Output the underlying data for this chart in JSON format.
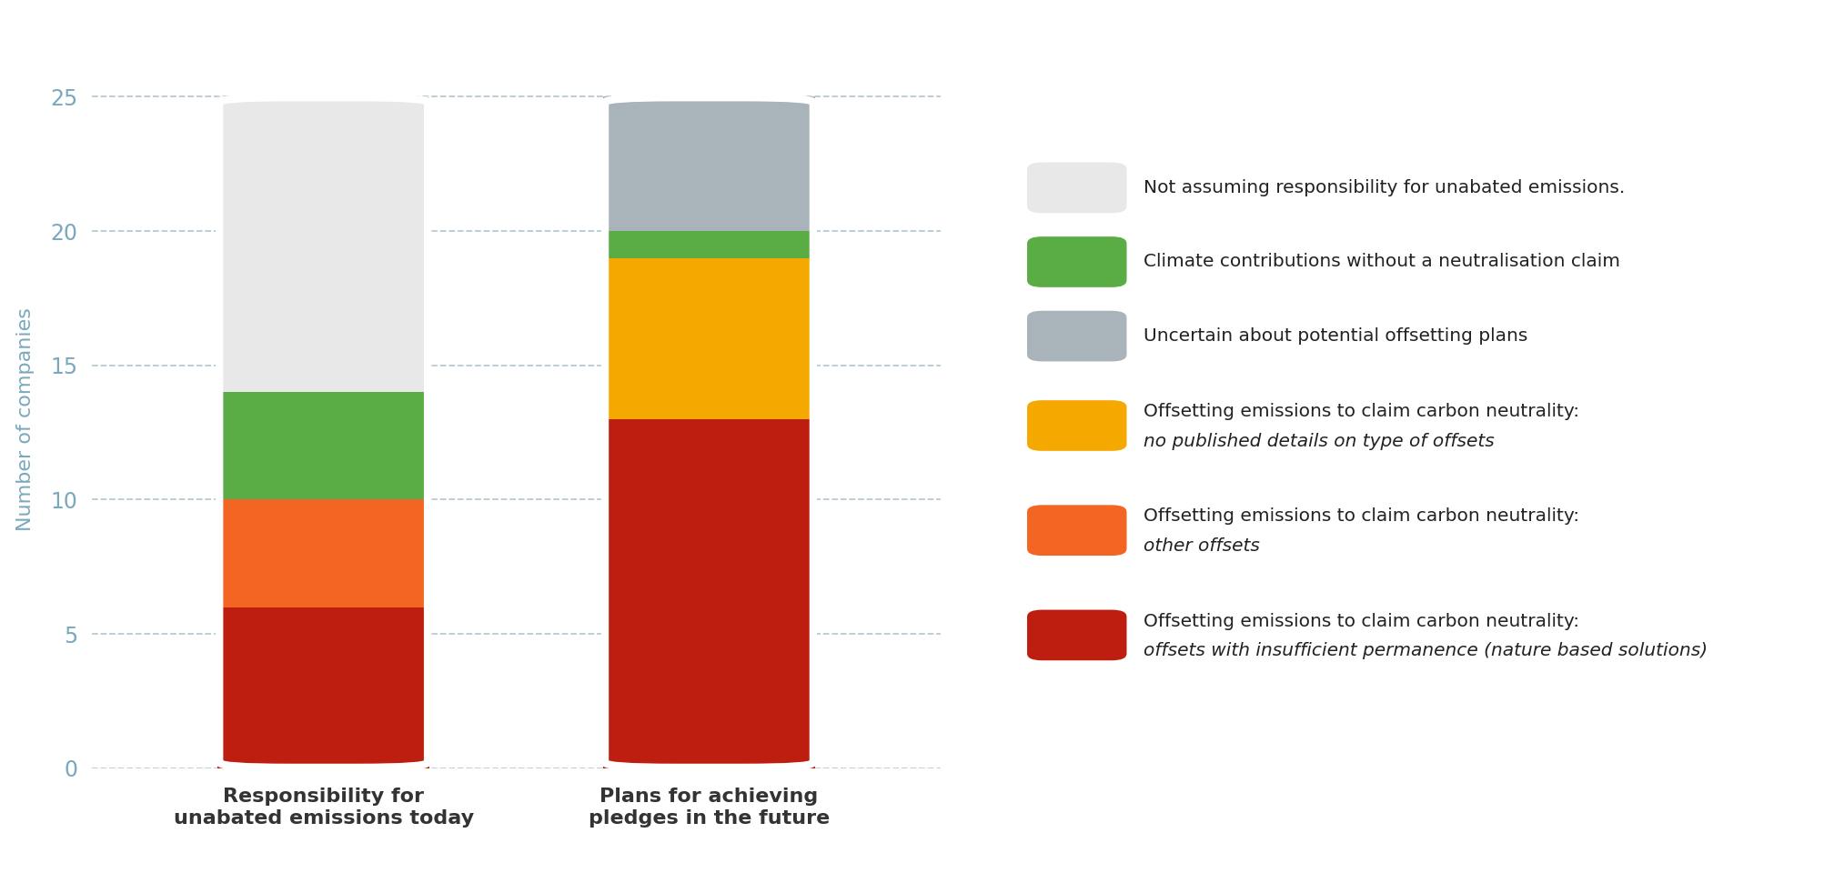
{
  "categories": [
    "Responsibility for\nunabated emissions today",
    "Plans for achieving\npledges in the future"
  ],
  "segments": [
    {
      "label": "Offsetting emissions to claim carbon neutrality:\noffsets with insufficient permanence (nature based solutions)",
      "values": [
        6,
        13
      ],
      "color": "#be1e10"
    },
    {
      "label": "Offsetting emissions to claim carbon neutrality:\nother offsets",
      "values": [
        4,
        0
      ],
      "color": "#f26522"
    },
    {
      "label": "Offsetting emissions to claim carbon neutrality:\nno published details on type of offsets",
      "values": [
        0,
        6
      ],
      "color": "#f5a800"
    },
    {
      "label": "Climate contributions without a neutralisation claim",
      "values": [
        4,
        1
      ],
      "color": "#5aac44"
    },
    {
      "label": "Uncertain about potential offsetting plans",
      "values": [
        0,
        5
      ],
      "color": "#a8b4ba"
    },
    {
      "label": "Not assuming responsibility for unabated emissions.",
      "values": [
        11,
        0
      ],
      "color": "#e8e8e8"
    }
  ],
  "ylabel": "Number of companies",
  "ylim": [
    0,
    26
  ],
  "yticks": [
    0,
    5,
    10,
    15,
    20,
    25
  ],
  "background_color": "#ffffff",
  "bar_width": 0.55,
  "legend_items": [
    {
      "label": "Not assuming responsibility for unabated emissions.",
      "color": "#e8e8e8",
      "italic_part": null
    },
    {
      "label": "Climate contributions without a neutralisation claim",
      "color": "#5aac44",
      "italic_part": null
    },
    {
      "label": "Uncertain about potential offsetting plans",
      "color": "#a8b4ba",
      "italic_part": null
    },
    {
      "label": "Offsetting emissions to claim carbon neutrality:",
      "color": "#f5a800",
      "italic_part": "no published details on type of offsets"
    },
    {
      "label": "Offsetting emissions to claim carbon neutrality:",
      "color": "#f26522",
      "italic_part": "other offsets"
    },
    {
      "label": "Offsetting emissions to claim carbon neutrality:",
      "color": "#be1e10",
      "italic_part": "offsets with insufficient permanence (nature based solutions)"
    }
  ]
}
